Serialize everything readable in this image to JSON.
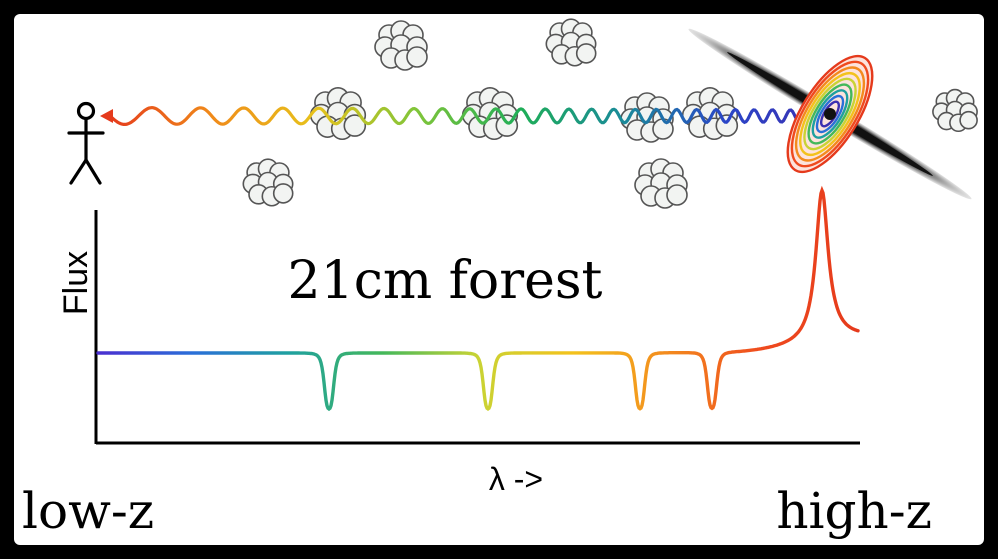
{
  "labels": {
    "y_axis": "Flux",
    "x_axis": "λ ->",
    "center": "21cm forest",
    "left_end": "low-z",
    "right_end": "high-z"
  },
  "icons": {
    "observer": "stick-figure-observer-icon",
    "cloud": "gas-cloud-icon",
    "source": "radio-quasar-disk-and-jet-icon"
  },
  "colors": {
    "frame": "#000000",
    "background": "#ffffff",
    "cloud_fill": "#f2f4f2",
    "cloud_stroke": "#555555",
    "axis": "#000000"
  },
  "photon_gradient": [
    "#e53a1c",
    "#f08a1a",
    "#e7c21b",
    "#7fc53a",
    "#1fae57",
    "#1a8a9a",
    "#2a45c8",
    "#3c2fb0"
  ],
  "spectrum_gradient": [
    "#4a2fd0",
    "#2a6fd8",
    "#1fa0a0",
    "#44b85a",
    "#c9d334",
    "#f3c21c",
    "#f38a1e",
    "#ef4a1e",
    "#e53a1c"
  ]
}
